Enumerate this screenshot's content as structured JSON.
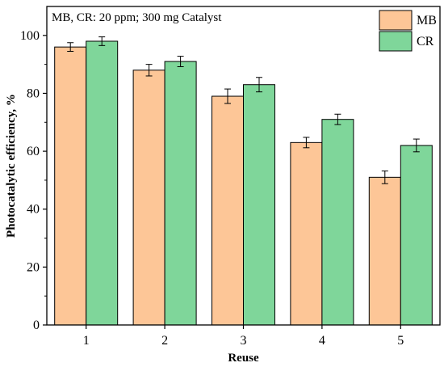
{
  "chart_data": {
    "type": "bar",
    "annotation": "MB, CR: 20 ppm; 300 mg Catalyst",
    "xlabel": "Reuse",
    "ylabel": "Photocatalytic efficiency, %",
    "categories": [
      "1",
      "2",
      "3",
      "4",
      "5"
    ],
    "ylim": [
      0,
      110
    ],
    "yticks": [
      0,
      20,
      40,
      60,
      80,
      100
    ],
    "grid": false,
    "legend_position": "top-right",
    "series": [
      {
        "name": "MB",
        "color": "#fdc697",
        "values": [
          96,
          88,
          79,
          63,
          51
        ],
        "errors": [
          1.5,
          2,
          2.5,
          1.8,
          2.2
        ]
      },
      {
        "name": "CR",
        "color": "#7fd69a",
        "values": [
          98,
          91,
          83,
          71,
          62
        ],
        "errors": [
          1.5,
          1.8,
          2.5,
          1.8,
          2.2
        ]
      }
    ]
  }
}
